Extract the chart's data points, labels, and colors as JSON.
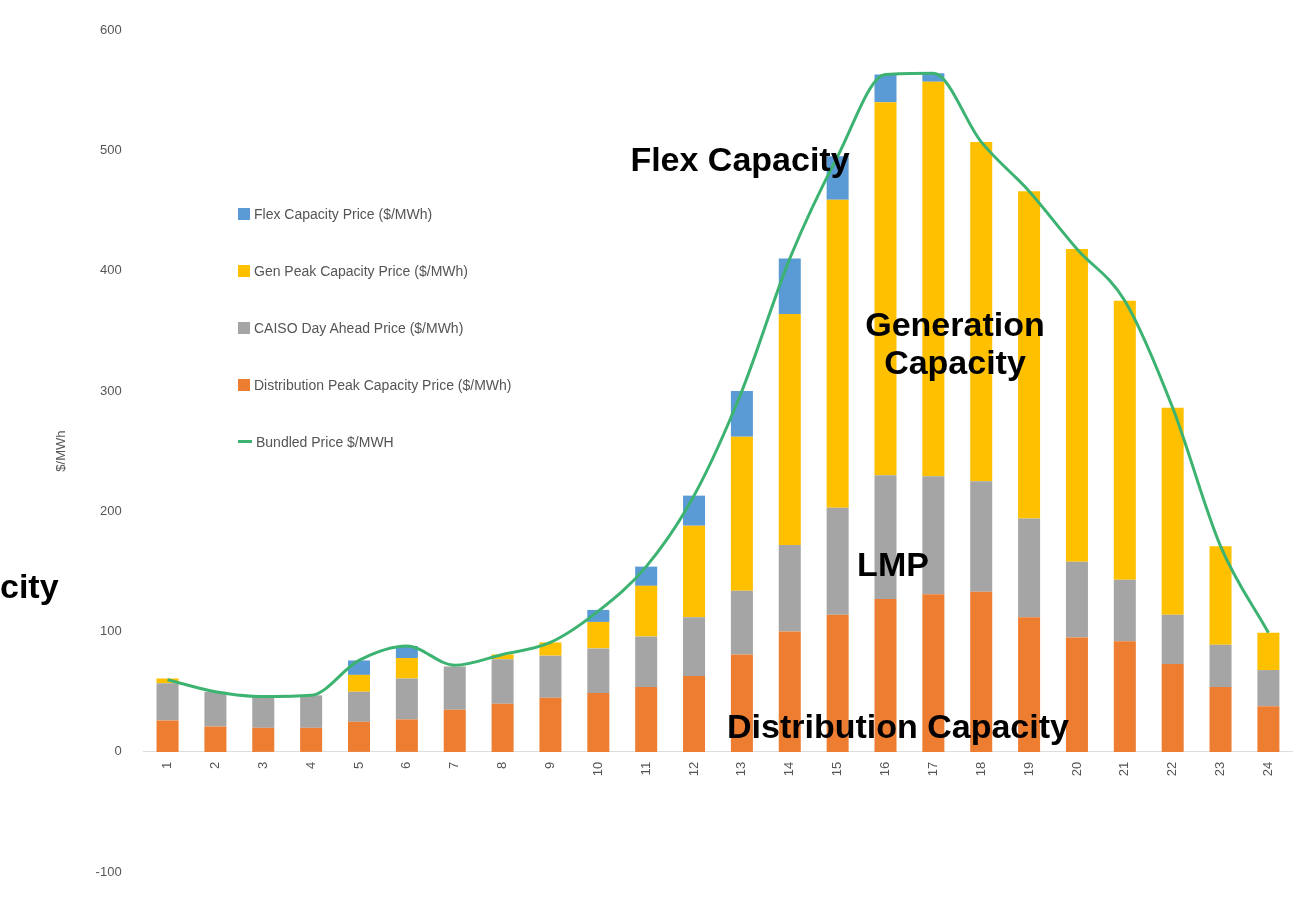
{
  "chart_data": {
    "type": "bar",
    "stacked": true,
    "ylabel": "$/MWh",
    "categories": [
      "1",
      "2",
      "3",
      "4",
      "5",
      "6",
      "7",
      "8",
      "9",
      "10",
      "11",
      "12",
      "13",
      "14",
      "15",
      "16",
      "17",
      "18",
      "19",
      "20",
      "21",
      "22",
      "23",
      "24"
    ],
    "series": [
      {
        "name": "Distribution Peak Capacity Price ($/MWh)",
        "color": "#ed7d31",
        "values": [
          26,
          21,
          20,
          20,
          25,
          27,
          35,
          40,
          45,
          49,
          54,
          63,
          81,
          100,
          114,
          127,
          131,
          133,
          112,
          95,
          92,
          73,
          54,
          38
        ]
      },
      {
        "name": "CAISO Day Ahead Price ($/MWh)",
        "color": "#a5a5a5",
        "values": [
          31,
          29,
          26,
          27,
          25,
          34,
          36,
          37,
          35,
          37,
          42,
          49,
          53,
          72,
          89,
          103,
          98,
          92,
          82,
          63,
          51,
          41,
          35,
          30
        ]
      },
      {
        "name": "Gen Peak Capacity Price ($/MWh)",
        "color": "#ffc000",
        "values": [
          4,
          0,
          0,
          0,
          14,
          17,
          null,
          4,
          11,
          22,
          42,
          76,
          128,
          192,
          256,
          310,
          328,
          282,
          272,
          260,
          232,
          172,
          82,
          31
        ]
      },
      {
        "name": "Flex Capacity Price ($/MWh)",
        "color": "#5b9bd5",
        "values": [
          0,
          0,
          0,
          0,
          12,
          10,
          0,
          0,
          0,
          10,
          16,
          25,
          38,
          46,
          36,
          23,
          7,
          0,
          0,
          0,
          0,
          0,
          0,
          0
        ]
      },
      {
        "name": "Bundled Price $/MWH",
        "type": "line",
        "color": "#3cb371",
        "values": [
          60,
          50,
          46,
          47,
          76,
          88,
          72,
          81,
          91,
          117,
          154,
          213,
          300,
          410,
          495,
          563,
          564,
          507,
          466,
          418,
          375,
          286,
          171,
          99
        ]
      }
    ],
    "ylim": [
      -100,
      600
    ],
    "yticks": [
      -100,
      0,
      100,
      200,
      300,
      400,
      500,
      600
    ],
    "grid": false,
    "legend": "top left",
    "marker": "none",
    "line_style": "solid",
    "annotations": [
      "Flex Capacity",
      "Generation Capacity",
      "LMP",
      "Distribution Capacity",
      "city"
    ]
  }
}
